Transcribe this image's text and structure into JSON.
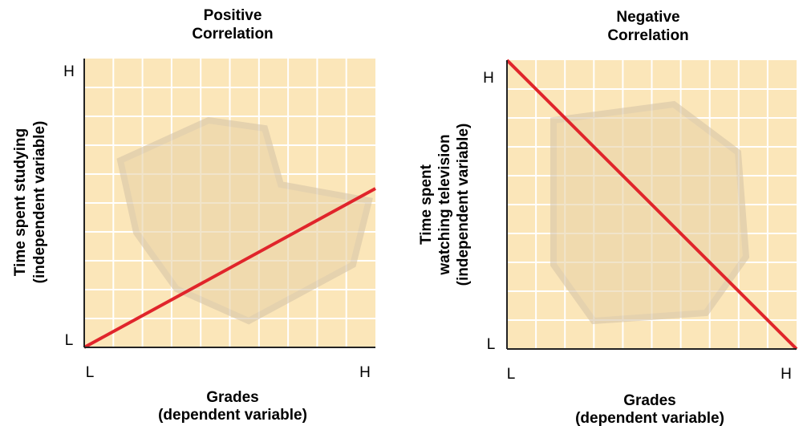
{
  "panels": [
    {
      "title": [
        "Positive",
        "Correlation"
      ],
      "y_label": [
        "Time spent studying",
        "(independent variable)"
      ],
      "x_label": [
        "Grades",
        "(dependent variable)"
      ],
      "y_high": "H",
      "y_low": "L",
      "x_low": "L",
      "x_high": "H"
    },
    {
      "title": [
        "Negative",
        "Correlation"
      ],
      "y_label": [
        "Time spent",
        "watching television",
        "(independent variable)"
      ],
      "x_label": [
        "Grades",
        "(dependent variable)"
      ],
      "y_high": "H",
      "y_low": "L",
      "x_low": "L",
      "x_high": "H"
    }
  ]
}
